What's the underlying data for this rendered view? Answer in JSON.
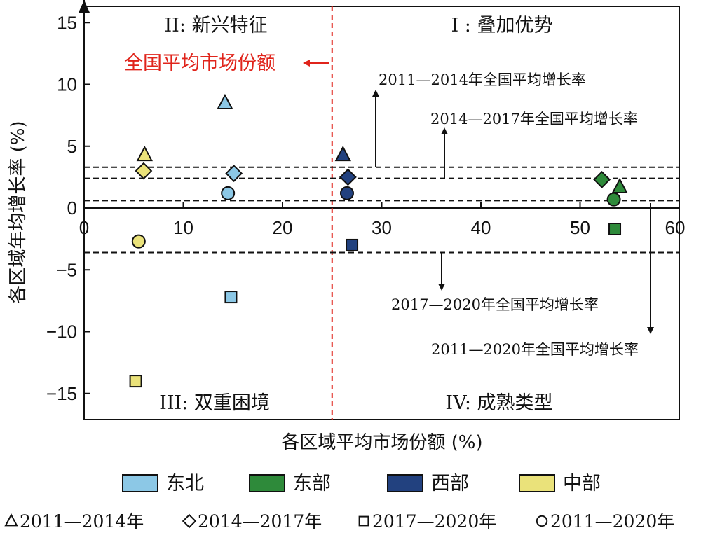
{
  "chart_data": {
    "type": "scatter",
    "xlabel": "各区域平均市场份额 (%)",
    "ylabel": "各区域年均增长率 (%)",
    "xlim": [
      0,
      60
    ],
    "ylim": [
      -17,
      16.5
    ],
    "x_ticks": [
      "0",
      "10",
      "20",
      "30",
      "40",
      "50",
      "60"
    ],
    "y_ticks": [
      "15",
      "10",
      "5",
      "0",
      "−5",
      "−10",
      "−15"
    ],
    "national_average_share": 25,
    "national_average_share_label": "全国平均市场份额",
    "quadrants": {
      "q1": "I : 叠加优势",
      "q2": "II: 新兴特征",
      "q3": "III: 双重困境",
      "q4": "IV: 成熟类型"
    },
    "reference_lines": [
      {
        "label": "2011—2014年全国平均增长率",
        "y": 3.3
      },
      {
        "label": "2014—2017年全国平均增长率",
        "y": 2.4
      },
      {
        "label": "2011—2020年全国平均增长率",
        "y": 0.6
      },
      {
        "label": "2017—2020年全国平均增长率",
        "y": -3.6
      }
    ],
    "regions": [
      {
        "name": "东北",
        "color": "#8cc8e6"
      },
      {
        "name": "东部",
        "color": "#2e8a3a"
      },
      {
        "name": "西部",
        "color": "#22417f"
      },
      {
        "name": "中部",
        "color": "#eae27a"
      }
    ],
    "periods": [
      {
        "label": "2011—2014年",
        "marker": "triangle"
      },
      {
        "label": "2014—2017年",
        "marker": "diamond"
      },
      {
        "label": "2017—2020年",
        "marker": "square"
      },
      {
        "label": "2011—2020年",
        "marker": "circle"
      }
    ],
    "points": [
      {
        "region": "东北",
        "period": "2011—2014年",
        "x": 14.2,
        "y": 8.5
      },
      {
        "region": "东北",
        "period": "2014—2017年",
        "x": 15.1,
        "y": 2.8
      },
      {
        "region": "东北",
        "period": "2017—2020年",
        "x": 14.8,
        "y": -7.2
      },
      {
        "region": "东北",
        "period": "2011—2020年",
        "x": 14.5,
        "y": 1.2
      },
      {
        "region": "东部",
        "period": "2011—2014年",
        "x": 54.0,
        "y": 1.7
      },
      {
        "region": "东部",
        "period": "2014—2017年",
        "x": 52.2,
        "y": 2.3
      },
      {
        "region": "东部",
        "period": "2017—2020年",
        "x": 53.5,
        "y": -1.7
      },
      {
        "region": "东部",
        "period": "2011—2020年",
        "x": 53.4,
        "y": 0.7
      },
      {
        "region": "西部",
        "period": "2011—2014年",
        "x": 26.1,
        "y": 4.3
      },
      {
        "region": "西部",
        "period": "2014—2017年",
        "x": 26.6,
        "y": 2.5
      },
      {
        "region": "西部",
        "period": "2017—2020年",
        "x": 27.0,
        "y": -3.0
      },
      {
        "region": "西部",
        "period": "2011—2020年",
        "x": 26.5,
        "y": 1.2
      },
      {
        "region": "中部",
        "period": "2011—2014年",
        "x": 6.1,
        "y": 4.3
      },
      {
        "region": "中部",
        "period": "2014—2017年",
        "x": 6.0,
        "y": 3.0
      },
      {
        "region": "中部",
        "period": "2017—2020年",
        "x": 5.2,
        "y": -14.0
      },
      {
        "region": "中部",
        "period": "2011—2020年",
        "x": 5.5,
        "y": -2.7
      }
    ]
  }
}
